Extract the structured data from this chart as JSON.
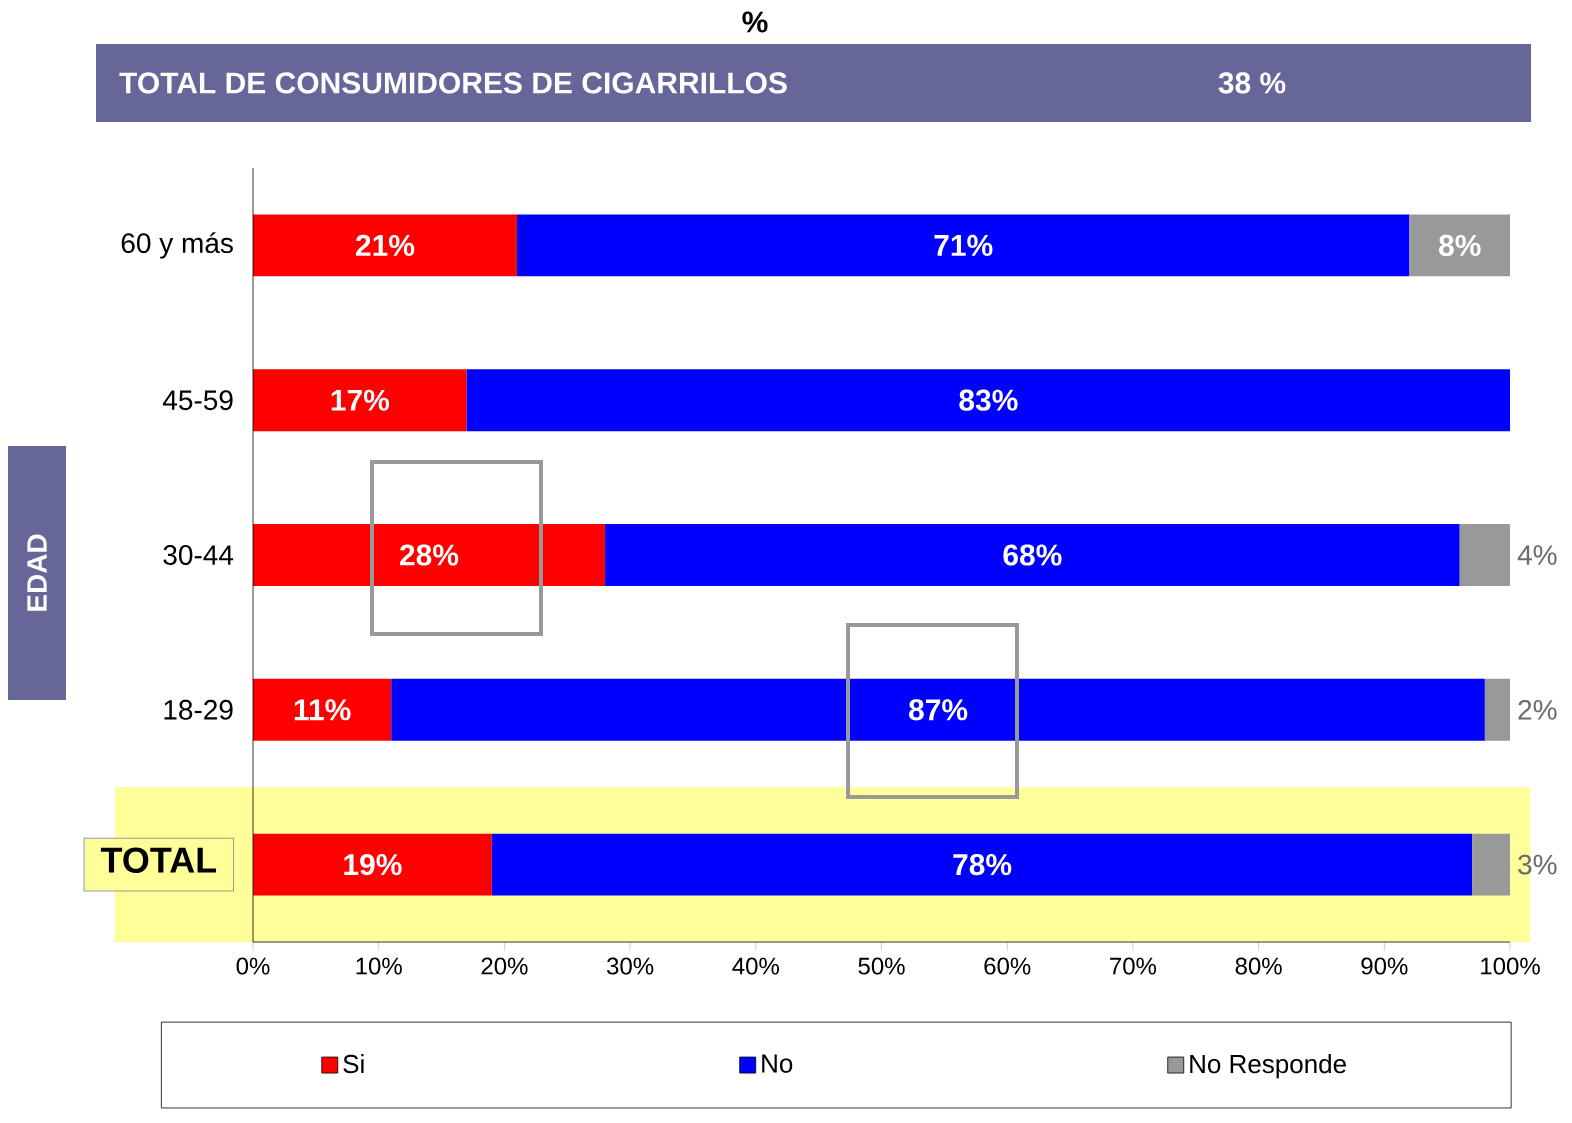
{
  "chart_data": {
    "type": "bar",
    "orientation": "horizontal",
    "stacked": true,
    "title": "%",
    "ylabel": "EDAD",
    "annotations": [
      "TOTAL DE CONSUMIDORES DE CIGARRILLOS",
      "38 %"
    ],
    "categories": [
      "60 y más",
      "45-59",
      "30-44",
      "18-29",
      "TOTAL"
    ],
    "series": [
      {
        "name": "Si",
        "color": "#ff0000",
        "values": [
          21,
          17,
          28,
          11,
          19
        ],
        "value_labels": [
          "21%",
          "17%",
          "28%",
          "11%",
          "19%"
        ]
      },
      {
        "name": "No",
        "color": "#0000ff",
        "values": [
          71,
          83,
          68,
          87,
          78
        ],
        "value_labels": [
          "71%",
          "83%",
          "68%",
          "87%",
          "78%"
        ]
      },
      {
        "name": "No Responde",
        "color": "#999999",
        "values": [
          8,
          null,
          4,
          2,
          3
        ],
        "value_labels": [
          "8%",
          null,
          "4%",
          "2%",
          "3%"
        ]
      }
    ],
    "xlim": [
      0,
      100
    ],
    "xticks": [
      {
        "value": 0,
        "label": "0%"
      },
      {
        "value": 10,
        "label": "10%"
      },
      {
        "value": 20,
        "label": "20%"
      },
      {
        "value": 30,
        "label": "30%"
      },
      {
        "value": 40,
        "label": "40%"
      },
      {
        "value": 50,
        "label": "50%"
      },
      {
        "value": 60,
        "label": "60%"
      },
      {
        "value": 70,
        "label": "70%"
      },
      {
        "value": 80,
        "label": "80%"
      },
      {
        "value": 90,
        "label": "90%"
      },
      {
        "value": 100,
        "label": "100%"
      }
    ],
    "bands": [
      {
        "axis": "y",
        "from": "TOTAL",
        "to": "TOTAL",
        "color": "#ffff99"
      }
    ],
    "legend": "bottom"
  }
}
